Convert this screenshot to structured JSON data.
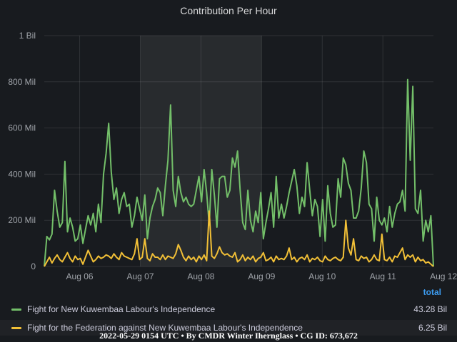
{
  "panel": {
    "title": "Contribution Per Hour"
  },
  "legend": {
    "header": "total",
    "items": [
      {
        "name": "Fight for New Kuwembaa Labour's Independence",
        "value": "43.28 Bil",
        "color": "#73bf69"
      },
      {
        "name": "Fight for the Federation against New Kuwembaa Labour's Independence",
        "value": "6.25 Bil",
        "color": "#f2c037"
      }
    ]
  },
  "footer": {
    "text": "2022-05-29 0154 UTC • By CMDR Winter Ihernglаss • CG ID: 673,672"
  },
  "chart_data": {
    "type": "line",
    "title": "Contribution Per Hour",
    "xlabel": "",
    "ylabel": "",
    "grid": true,
    "legend_position": "bottom",
    "x_range_hours": [
      0,
      154
    ],
    "ylim": [
      0,
      1000
    ],
    "y_unit": "Mil",
    "y_ticks": [
      {
        "value": 0,
        "label": "0"
      },
      {
        "value": 200,
        "label": "200 Mil"
      },
      {
        "value": 400,
        "label": "400 Mil"
      },
      {
        "value": 600,
        "label": "600 Mil"
      },
      {
        "value": 800,
        "label": "800 Mil"
      },
      {
        "value": 1000,
        "label": "1 Bil"
      }
    ],
    "x_ticks": [
      {
        "hour": 14,
        "label": "Aug 06"
      },
      {
        "hour": 38,
        "label": "Aug 07"
      },
      {
        "hour": 62,
        "label": "Aug 08"
      },
      {
        "hour": 86,
        "label": "Aug 09"
      },
      {
        "hour": 110,
        "label": "Aug 10"
      },
      {
        "hour": 134,
        "label": "Aug 11"
      },
      {
        "hour": 158,
        "label": "Aug 12"
      }
    ],
    "highlight_hours": [
      38,
      86
    ],
    "series": [
      {
        "name": "Fight for New Kuwembaa Labour's Independence",
        "color": "#73bf69",
        "values": [
          0,
          130,
          115,
          140,
          330,
          240,
          170,
          190,
          455,
          150,
          210,
          170,
          110,
          120,
          180,
          100,
          160,
          220,
          180,
          230,
          150,
          270,
          190,
          400,
          490,
          620,
          410,
          290,
          340,
          230,
          290,
          320,
          260,
          270,
          170,
          220,
          300,
          250,
          200,
          310,
          120,
          210,
          260,
          290,
          340,
          320,
          220,
          350,
          460,
          700,
          330,
          260,
          390,
          320,
          280,
          300,
          270,
          260,
          270,
          330,
          390,
          280,
          420,
          320,
          180,
          420,
          310,
          170,
          380,
          390,
          390,
          300,
          330,
          470,
          430,
          500,
          330,
          190,
          160,
          330,
          200,
          150,
          240,
          190,
          320,
          120,
          190,
          250,
          320,
          170,
          390,
          210,
          270,
          210,
          260,
          320,
          370,
          420,
          350,
          230,
          300,
          260,
          450,
          330,
          220,
          290,
          260,
          130,
          290,
          110,
          350,
          230,
          170,
          180,
          380,
          300,
          470,
          440,
          360,
          330,
          210,
          210,
          240,
          340,
          500,
          450,
          270,
          250,
          110,
          300,
          200,
          180,
          210,
          150,
          260,
          170,
          230,
          270,
          280,
          330,
          240,
          810,
          460,
          780,
          250,
          230,
          330,
          110,
          200,
          150,
          220,
          0
        ]
      },
      {
        "name": "Fight for the Federation against New Kuwembaa Labour's Independence",
        "color": "#f2c037",
        "values": [
          0,
          20,
          40,
          15,
          35,
          50,
          30,
          20,
          40,
          60,
          35,
          20,
          45,
          30,
          35,
          10,
          40,
          70,
          45,
          20,
          30,
          45,
          35,
          40,
          50,
          45,
          35,
          55,
          40,
          30,
          60,
          45,
          40,
          35,
          30,
          55,
          120,
          30,
          40,
          120,
          35,
          25,
          55,
          40,
          40,
          30,
          50,
          30,
          45,
          40,
          35,
          55,
          95,
          70,
          40,
          25,
          45,
          30,
          40,
          20,
          45,
          30,
          50,
          25,
          240,
          45,
          35,
          55,
          85,
          60,
          50,
          55,
          45,
          40,
          60,
          20,
          30,
          50,
          25,
          40,
          30,
          45,
          20,
          35,
          40,
          60,
          25,
          30,
          40,
          20,
          45,
          30,
          35,
          30,
          45,
          80,
          30,
          40,
          20,
          35,
          40,
          30,
          50,
          20,
          35,
          30,
          40,
          25,
          20,
          45,
          30,
          25,
          35,
          40,
          30,
          25,
          40,
          200,
          80,
          50,
          120,
          30,
          25,
          45,
          35,
          40,
          20,
          30,
          50,
          30,
          25,
          140,
          30,
          25,
          40,
          20,
          45,
          40,
          60,
          80,
          30,
          50,
          40,
          50,
          20,
          40,
          25,
          30,
          15,
          20,
          10,
          0
        ]
      }
    ]
  }
}
